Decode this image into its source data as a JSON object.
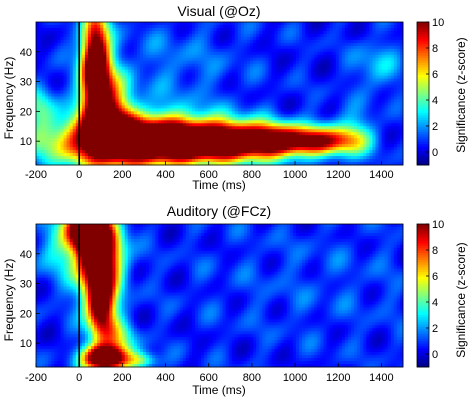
{
  "chart_data": [
    {
      "type": "heatmap",
      "title": "Visual (@Oz)",
      "xlabel": "Time (ms)",
      "ylabel": "Frequency (Hz)",
      "xlim": [
        -200,
        1500
      ],
      "ylim": [
        2,
        50
      ],
      "xticks": [
        "-200",
        "0",
        "200",
        "400",
        "600",
        "800",
        "1000",
        "1200",
        "1400"
      ],
      "yticks": [
        "10",
        "20",
        "30",
        "40"
      ],
      "colorbar": {
        "label": "Significance (z-score)",
        "range": [
          -1,
          10
        ],
        "ticks": [
          "0",
          "2",
          "4",
          "6",
          "8",
          "10"
        ]
      },
      "stimulus_onset_ms": 0,
      "blobs": [
        {
          "t": 250,
          "f": 10,
          "st": 260,
          "sf": 6,
          "z": 13
        },
        {
          "t": 650,
          "f": 10,
          "st": 230,
          "sf": 4.5,
          "z": 10
        },
        {
          "t": 950,
          "f": 10,
          "st": 160,
          "sf": 3.5,
          "z": 7
        },
        {
          "t": 1150,
          "f": 10,
          "st": 110,
          "sf": 3,
          "z": 4
        },
        {
          "t": 75,
          "f": 36,
          "st": 45,
          "sf": 12,
          "z": 13
        },
        {
          "t": 130,
          "f": 20,
          "st": 70,
          "sf": 9,
          "z": 8
        },
        {
          "t": 1260,
          "f": 12,
          "st": 70,
          "sf": 5,
          "z": 3
        },
        {
          "t": -180,
          "f": 22,
          "st": 50,
          "sf": 5,
          "z": 3
        },
        {
          "t": 1380,
          "f": 35,
          "st": 70,
          "sf": 6,
          "z": 2
        },
        {
          "t": 450,
          "f": 35,
          "st": 200,
          "sf": 10,
          "z": 1
        }
      ]
    },
    {
      "type": "heatmap",
      "title": "Auditory (@FCz)",
      "xlabel": "Time (ms)",
      "ylabel": "Frequency (Hz)",
      "xlim": [
        -200,
        1500
      ],
      "ylim": [
        2,
        50
      ],
      "xticks": [
        "-200",
        "0",
        "200",
        "400",
        "600",
        "800",
        "1000",
        "1200",
        "1400"
      ],
      "yticks": [
        "10",
        "20",
        "30",
        "40"
      ],
      "colorbar": {
        "label": "Significance (z-score)",
        "range": [
          -1,
          10
        ],
        "ticks": [
          "0",
          "2",
          "4",
          "6",
          "8",
          "10"
        ]
      },
      "stimulus_onset_ms": 0,
      "blobs": [
        {
          "t": 90,
          "f": 40,
          "st": 70,
          "sf": 10,
          "z": 14
        },
        {
          "t": 20,
          "f": 48,
          "st": 60,
          "sf": 5,
          "z": 10
        },
        {
          "t": 100,
          "f": 22,
          "st": 45,
          "sf": 7,
          "z": 10
        },
        {
          "t": 120,
          "f": 5,
          "st": 70,
          "sf": 3,
          "z": 14
        },
        {
          "t": 170,
          "f": 12,
          "st": 60,
          "sf": 4,
          "z": 4
        },
        {
          "t": 290,
          "f": 4,
          "st": 50,
          "sf": 2,
          "z": 4
        },
        {
          "t": -100,
          "f": 42,
          "st": 80,
          "sf": 8,
          "z": 2
        },
        {
          "t": 1100,
          "f": 30,
          "st": 400,
          "sf": 15,
          "z": 0.5
        }
      ]
    }
  ]
}
